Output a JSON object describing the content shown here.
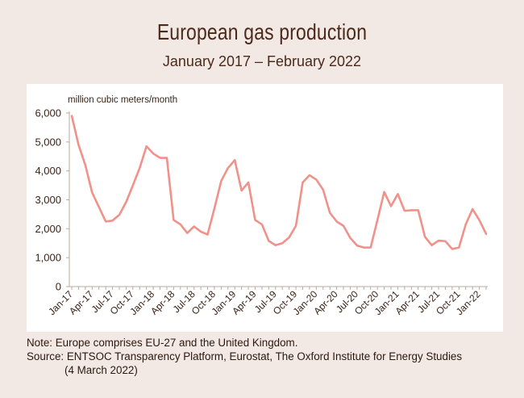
{
  "chart_data": {
    "type": "line",
    "title": "European gas production",
    "subtitle": "January 2017 – February 2022",
    "ylabel": "million cubic meters/month",
    "xlabel": "",
    "ylim": [
      0,
      6000
    ],
    "yticks": [
      0,
      1000,
      2000,
      3000,
      4000,
      5000,
      6000
    ],
    "ytick_labels": [
      "0",
      "1,000",
      "2,000",
      "3,000",
      "4,000",
      "5,000",
      "6,000"
    ],
    "xtick_labels": [
      "Jan-17",
      "Apr-17",
      "Jul-17",
      "Oct-17",
      "Jan-18",
      "Apr-18",
      "Jul-18",
      "Oct-18",
      "Jan-19",
      "Apr-19",
      "Jul-19",
      "Oct-19",
      "Jan-20",
      "Apr-20",
      "Jul-20",
      "Oct-20",
      "Jan-21",
      "Apr-21",
      "Jul-21",
      "Oct-21",
      "Jan-22"
    ],
    "x_start": "2017-01",
    "grid": false,
    "line_color": "#f0918a",
    "series": [
      {
        "name": "",
        "values": [
          5900,
          4900,
          4200,
          3250,
          2750,
          2250,
          2280,
          2480,
          2920,
          3500,
          4100,
          4850,
          4600,
          4450,
          4450,
          2300,
          2150,
          1850,
          2080,
          1900,
          1800,
          2700,
          3650,
          4100,
          4370,
          3320,
          3600,
          2300,
          2150,
          1580,
          1430,
          1500,
          1700,
          2100,
          3600,
          3850,
          3700,
          3350,
          2550,
          2250,
          2100,
          1680,
          1420,
          1350,
          1350,
          2300,
          3270,
          2780,
          3200,
          2620,
          2640,
          2640,
          1720,
          1430,
          1590,
          1570,
          1300,
          1350,
          2150,
          2680,
          2300,
          1820
        ]
      }
    ]
  },
  "notes": {
    "note": "Note:  Europe comprises EU-27 and the United Kingdom.",
    "source_line1": "Source:  ENTSOC Transparency Platform, Eurostat, The Oxford Institute for Energy Studies",
    "source_line2": "(4 March 2022)"
  }
}
